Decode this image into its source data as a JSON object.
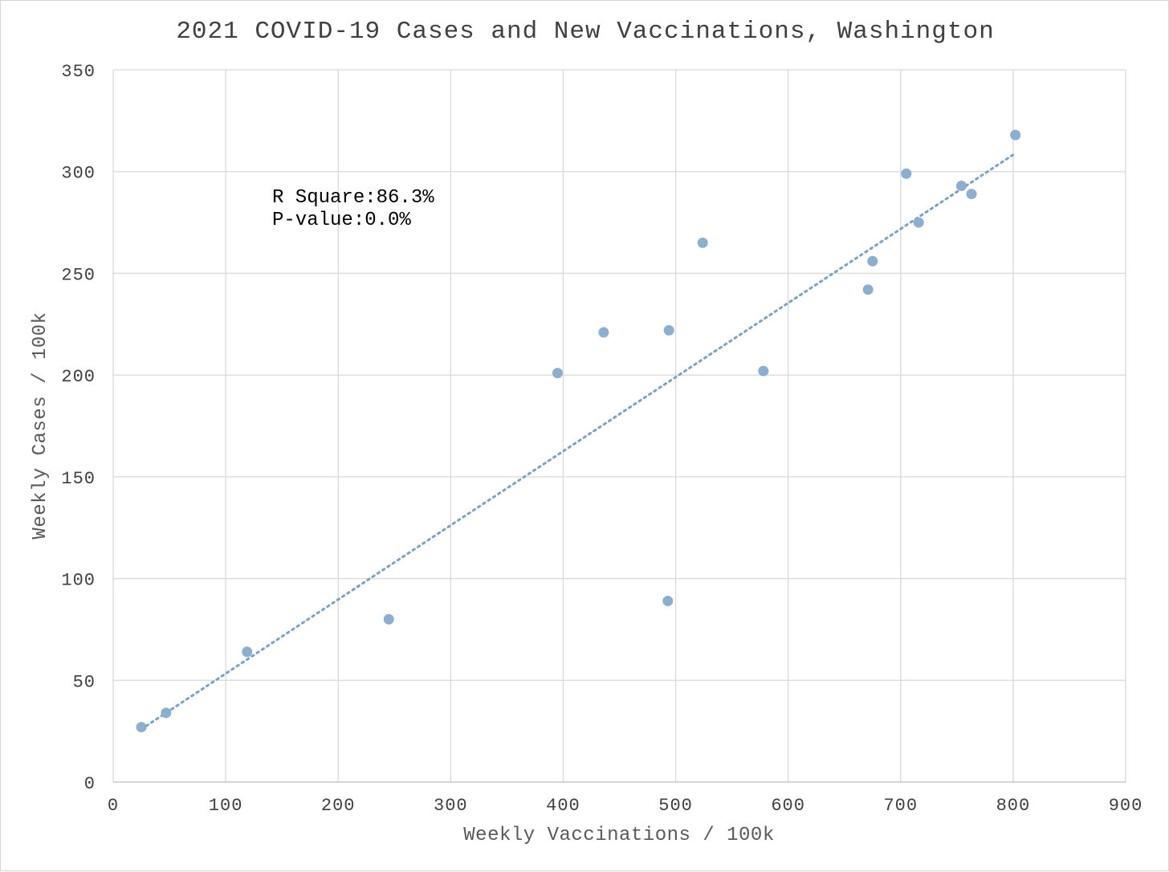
{
  "chart_data": {
    "type": "scatter",
    "title": "2021 COVID-19 Cases and New Vaccinations, Washington",
    "xlabel": "Weekly Vaccinations / 100k",
    "ylabel": "Weekly Cases / 100k",
    "xlim": [
      0,
      900
    ],
    "ylim": [
      0,
      350
    ],
    "x_ticks": [
      0,
      100,
      200,
      300,
      400,
      500,
      600,
      700,
      800,
      900
    ],
    "y_ticks": [
      0,
      50,
      100,
      150,
      200,
      250,
      300,
      350
    ],
    "x_tick_labels": [
      "0",
      "100",
      "200",
      "300",
      "400",
      "500",
      "600",
      "700",
      "800",
      "900"
    ],
    "y_tick_labels": [
      "0",
      "50",
      "100",
      "150",
      "200",
      "250",
      "300",
      "350"
    ],
    "grid": true,
    "legend": "none",
    "colors": {
      "points": "#8eaed0",
      "trendline": "#7ba1c7"
    },
    "points": [
      {
        "x": 25,
        "y": 27
      },
      {
        "x": 47,
        "y": 34
      },
      {
        "x": 119,
        "y": 64
      },
      {
        "x": 245,
        "y": 80
      },
      {
        "x": 395,
        "y": 201
      },
      {
        "x": 436,
        "y": 221
      },
      {
        "x": 493,
        "y": 89
      },
      {
        "x": 494,
        "y": 222
      },
      {
        "x": 524,
        "y": 265
      },
      {
        "x": 578,
        "y": 202
      },
      {
        "x": 671,
        "y": 242
      },
      {
        "x": 675,
        "y": 256
      },
      {
        "x": 705,
        "y": 299
      },
      {
        "x": 716,
        "y": 275
      },
      {
        "x": 754,
        "y": 293
      },
      {
        "x": 763,
        "y": 289
      },
      {
        "x": 802,
        "y": 318
      }
    ],
    "trendline": {
      "style": "dotted",
      "from": {
        "x": 25,
        "y": 26
      },
      "to": {
        "x": 802,
        "y": 309
      }
    },
    "annotations": {
      "r_square_label": "R Square:",
      "r_square_value": "86.3%",
      "p_value_label": "P-value:",
      "p_value_value": "0.0%"
    }
  }
}
